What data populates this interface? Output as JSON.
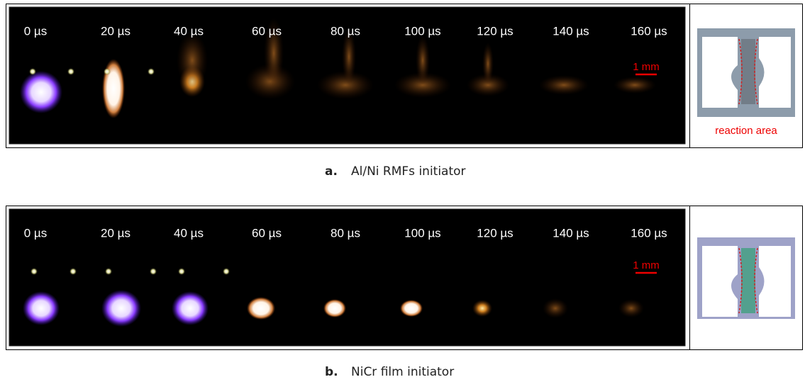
{
  "panels": [
    {
      "times": [
        "0 µs",
        "20 µs",
        "40 µs",
        "60 µs",
        "80 µs",
        "100 µs",
        "120 µs",
        "140 µs",
        "160 µs"
      ],
      "scale_bar": "1 mm",
      "inset_label": "reaction area",
      "caption": {
        "letter": "a.",
        "text": "Al/Ni RMFs initiator"
      }
    },
    {
      "times": [
        "0 µs",
        "20 µs",
        "40 µs",
        "60 µs",
        "80 µs",
        "100 µs",
        "120 µs",
        "140 µs",
        "160 µs"
      ],
      "scale_bar": "1 mm",
      "caption": {
        "letter": "b.",
        "text": "NiCr film initiator"
      }
    }
  ]
}
